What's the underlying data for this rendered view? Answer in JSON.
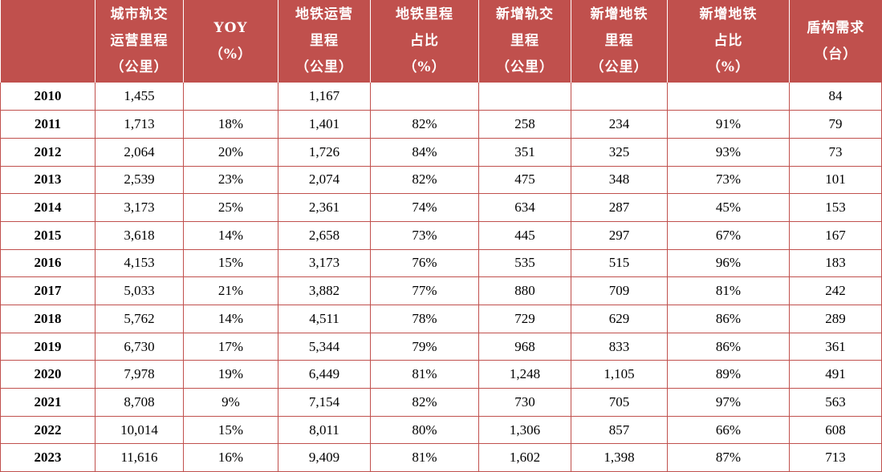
{
  "header": [
    [
      "城市轨交",
      "运营里程",
      "（公里）"
    ],
    [
      "YOY",
      "（%）"
    ],
    [
      "地铁运营",
      "里程",
      "（公里）"
    ],
    [
      "地铁里程",
      "占比",
      "（%）"
    ],
    [
      "新增轨交",
      "里程",
      "（公里）"
    ],
    [
      "新增地铁",
      "里程",
      "（公里）"
    ],
    [
      "新增地铁",
      "占比",
      "（%）"
    ],
    [
      "盾构需求",
      "（台）"
    ]
  ],
  "rows": [
    [
      "2010",
      "1,455",
      "",
      "1,167",
      "",
      "",
      "",
      "",
      "84"
    ],
    [
      "2011",
      "1,713",
      "18%",
      "1,401",
      "82%",
      "258",
      "234",
      "91%",
      "79"
    ],
    [
      "2012",
      "2,064",
      "20%",
      "1,726",
      "84%",
      "351",
      "325",
      "93%",
      "73"
    ],
    [
      "2013",
      "2,539",
      "23%",
      "2,074",
      "82%",
      "475",
      "348",
      "73%",
      "101"
    ],
    [
      "2014",
      "3,173",
      "25%",
      "2,361",
      "74%",
      "634",
      "287",
      "45%",
      "153"
    ],
    [
      "2015",
      "3,618",
      "14%",
      "2,658",
      "73%",
      "445",
      "297",
      "67%",
      "167"
    ],
    [
      "2016",
      "4,153",
      "15%",
      "3,173",
      "76%",
      "535",
      "515",
      "96%",
      "183"
    ],
    [
      "2017",
      "5,033",
      "21%",
      "3,882",
      "77%",
      "880",
      "709",
      "81%",
      "242"
    ],
    [
      "2018",
      "5,762",
      "14%",
      "4,511",
      "78%",
      "729",
      "629",
      "86%",
      "289"
    ],
    [
      "2019",
      "6,730",
      "17%",
      "5,344",
      "79%",
      "968",
      "833",
      "86%",
      "361"
    ],
    [
      "2020",
      "7,978",
      "19%",
      "6,449",
      "81%",
      "1,248",
      "1,105",
      "89%",
      "491"
    ],
    [
      "2021",
      "8,708",
      "9%",
      "7,154",
      "82%",
      "730",
      "705",
      "97%",
      "563"
    ],
    [
      "2022",
      "10,014",
      "15%",
      "8,011",
      "80%",
      "1,306",
      "857",
      "66%",
      "608"
    ],
    [
      "2023",
      "11,616",
      "16%",
      "9,409",
      "81%",
      "1,602",
      "1,398",
      "87%",
      "713"
    ]
  ],
  "colors": {
    "header_bg": "#c0504d",
    "header_text": "#ffffff",
    "grid": "#c0504d"
  }
}
